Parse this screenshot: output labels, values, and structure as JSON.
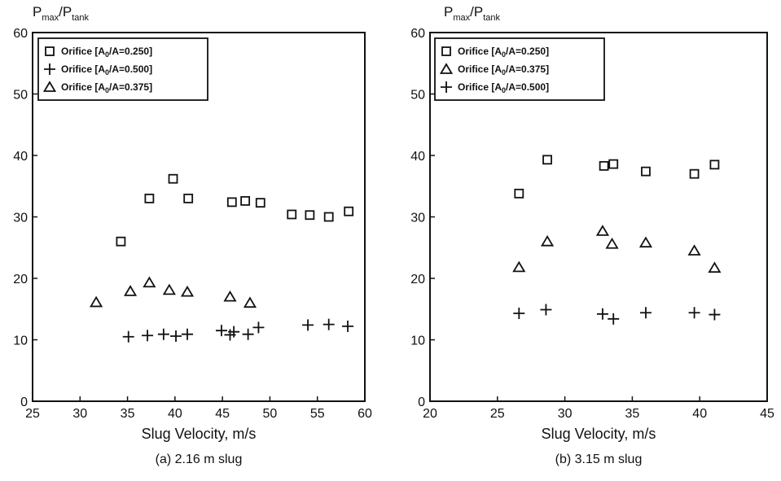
{
  "chart_data": [
    {
      "type": "scatter",
      "panel": "a",
      "caption": "(a) 2.16 m slug",
      "xlabel": "Slug Velocity, m/s",
      "ylabel": "P_max/P_tank",
      "xlim": [
        25,
        60
      ],
      "ylim": [
        0,
        60
      ],
      "xticks": [
        25,
        30,
        35,
        40,
        45,
        50,
        55,
        60
      ],
      "yticks": [
        0,
        10,
        20,
        30,
        40,
        50,
        60
      ],
      "grid": false,
      "legend_position": "top-left",
      "series": [
        {
          "name": "Orifice [A0/A=0.250]",
          "legend_main": "Orifice [A",
          "legend_sub": "0",
          "legend_tail": "/A=0.250]",
          "marker": "square",
          "points": [
            [
              34.3,
              26.0
            ],
            [
              37.3,
              33.0
            ],
            [
              39.8,
              36.2
            ],
            [
              41.4,
              33.0
            ],
            [
              46.0,
              32.4
            ],
            [
              47.4,
              32.6
            ],
            [
              49.0,
              32.3
            ],
            [
              52.3,
              30.4
            ],
            [
              54.2,
              30.3
            ],
            [
              56.2,
              30.0
            ],
            [
              58.3,
              30.9
            ]
          ]
        },
        {
          "name": "Orifice [A0/A=0.500]",
          "legend_main": "Orifice [A",
          "legend_sub": "0",
          "legend_tail": "/A=0.500]",
          "marker": "plus",
          "points": [
            [
              35.1,
              10.5
            ],
            [
              37.1,
              10.7
            ],
            [
              38.8,
              10.9
            ],
            [
              40.1,
              10.6
            ],
            [
              41.3,
              10.9
            ],
            [
              44.9,
              11.5
            ],
            [
              45.8,
              10.8
            ],
            [
              46.2,
              11.3
            ],
            [
              47.7,
              10.9
            ],
            [
              48.8,
              12.0
            ],
            [
              54.0,
              12.4
            ],
            [
              56.2,
              12.5
            ],
            [
              58.2,
              12.2
            ]
          ]
        },
        {
          "name": "Orifice [A0/A=0.375]",
          "legend_main": "Orifice [A",
          "legend_sub": "0",
          "legend_tail": "/A=0.375]",
          "marker": "triangle",
          "points": [
            [
              31.7,
              16.1
            ],
            [
              35.3,
              17.9
            ],
            [
              37.3,
              19.3
            ],
            [
              39.4,
              18.1
            ],
            [
              41.3,
              17.8
            ],
            [
              45.8,
              17.0
            ],
            [
              47.9,
              16.0
            ]
          ]
        }
      ]
    },
    {
      "type": "scatter",
      "panel": "b",
      "caption": "(b) 3.15 m slug",
      "xlabel": "Slug Velocity, m/s",
      "ylabel": "P_max/P_tank",
      "xlim": [
        20,
        45
      ],
      "ylim": [
        0,
        60
      ],
      "xticks": [
        20,
        25,
        30,
        35,
        40,
        45
      ],
      "yticks": [
        0,
        10,
        20,
        30,
        40,
        50,
        60
      ],
      "grid": false,
      "legend_position": "top-left",
      "series": [
        {
          "name": "Orifice [A0/A=0.250]",
          "legend_main": "Orifice [A",
          "legend_sub": "0",
          "legend_tail": "/A=0.250]",
          "marker": "square",
          "points": [
            [
              26.6,
              33.8
            ],
            [
              28.7,
              39.3
            ],
            [
              32.9,
              38.3
            ],
            [
              33.6,
              38.6
            ],
            [
              36.0,
              37.4
            ],
            [
              39.6,
              37.0
            ],
            [
              41.1,
              38.5
            ]
          ]
        },
        {
          "name": "Orifice [A0/A=0.375]",
          "legend_main": "Orifice [A",
          "legend_sub": "0",
          "legend_tail": "/A=0.375]",
          "marker": "triangle",
          "points": [
            [
              26.6,
              21.8
            ],
            [
              28.7,
              26.0
            ],
            [
              32.8,
              27.7
            ],
            [
              33.5,
              25.6
            ],
            [
              36.0,
              25.8
            ],
            [
              39.6,
              24.5
            ],
            [
              41.1,
              21.7
            ]
          ]
        },
        {
          "name": "Orifice [A0/A=0.500]",
          "legend_main": "Orifice [A",
          "legend_sub": "0",
          "legend_tail": "/A=0.500]",
          "marker": "plus",
          "points": [
            [
              26.6,
              14.3
            ],
            [
              28.6,
              14.9
            ],
            [
              32.8,
              14.2
            ],
            [
              33.6,
              13.4
            ],
            [
              36.0,
              14.4
            ],
            [
              39.6,
              14.4
            ],
            [
              41.1,
              14.1
            ]
          ]
        }
      ]
    }
  ],
  "axis_title_parts": {
    "main": "P",
    "sub1": "max",
    "slash": "/P",
    "sub2": "tank"
  }
}
